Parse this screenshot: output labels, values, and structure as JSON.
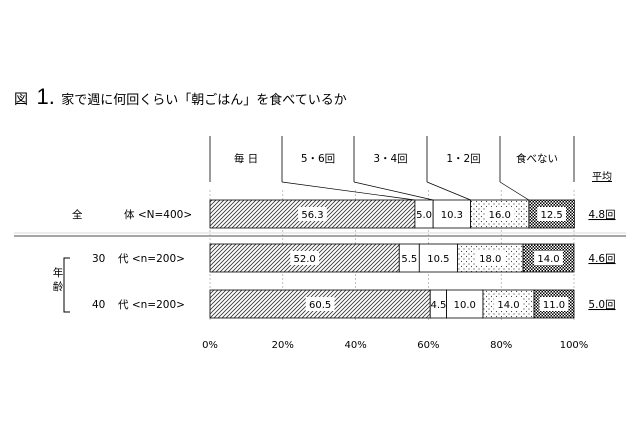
{
  "figure": {
    "label": "図",
    "number": "1.",
    "title": "家で週に何回くらい「朝ごはん」を食べているか"
  },
  "chart_data": {
    "type": "bar",
    "orientation": "horizontal",
    "stacked": true,
    "percent_stacked": true,
    "categories_legend": [
      "毎 日",
      "5・6回",
      "3・4回",
      "1・2回",
      "食べない"
    ],
    "average_header": "平均",
    "group_label": "年齢",
    "rows": [
      {
        "label_left": "全",
        "label_right": "体 <N=400>",
        "values": [
          56.3,
          5.0,
          10.3,
          16.0,
          12.5
        ],
        "average": "4.8回"
      },
      {
        "label_left": "30",
        "label_right": "代 <n=200>",
        "values": [
          52.0,
          5.5,
          10.5,
          18.0,
          14.0
        ],
        "average": "4.6回"
      },
      {
        "label_left": "40",
        "label_right": "代 <n=200>",
        "values": [
          60.5,
          4.5,
          10.0,
          14.0,
          11.0
        ],
        "average": "5.0回"
      }
    ],
    "value_labels": [
      [
        "56.3",
        "5.0",
        "10.3",
        "16.0",
        "12.5"
      ],
      [
        "52.0",
        "5.5",
        "10.5",
        "18.0",
        "14.0"
      ],
      [
        "60.5",
        "4.5",
        "10.0",
        "14.0",
        "11.0"
      ]
    ],
    "xticks": [
      "0%",
      "20%",
      "40%",
      "60%",
      "80%",
      "100%"
    ],
    "xlim": [
      0,
      100
    ],
    "grid": true,
    "series_fills": [
      "diagonal-hatch",
      "white",
      "white",
      "dots",
      "dense-checker"
    ]
  }
}
